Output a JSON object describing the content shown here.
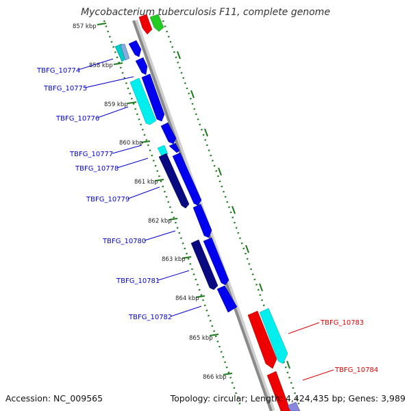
{
  "title": "Mycobacterium tuberculosis F11, complete genome",
  "footer": {
    "accession": "Accession: NC_009565",
    "topology": "Topology: circular; Length: 4,424,435 bp; Genes: 3,989"
  },
  "scale_marks": [
    {
      "label": "857 kbp"
    },
    {
      "label": "858 kbp"
    },
    {
      "label": "859 kbp"
    },
    {
      "label": "860 kbp"
    },
    {
      "label": "861 kbp"
    },
    {
      "label": "862 kbp"
    },
    {
      "label": "863 kbp"
    },
    {
      "label": "864 kbp"
    },
    {
      "label": "865 kbp"
    },
    {
      "label": "866 kbp"
    }
  ],
  "gene_labels": [
    {
      "text": "TBFG_10774",
      "color": "#0000cc"
    },
    {
      "text": "TBFG_10775",
      "color": "#0000cc"
    },
    {
      "text": "TBFG_10776",
      "color": "#0000cc"
    },
    {
      "text": "TBFG_10777",
      "color": "#0000cc"
    },
    {
      "text": "TBFG_10778",
      "color": "#0000cc"
    },
    {
      "text": "TBFG_10779",
      "color": "#0000cc"
    },
    {
      "text": "TBFG_10780",
      "color": "#0000cc"
    },
    {
      "text": "TBFG_10781",
      "color": "#0000cc"
    },
    {
      "text": "TBFG_10782",
      "color": "#0000cc"
    },
    {
      "text": "TBFG_10783",
      "color": "#dd0000"
    },
    {
      "text": "TBFG_10784",
      "color": "#dd0000"
    }
  ],
  "colors": {
    "blue": "#0000ee",
    "navy": "#0a0a80",
    "cyan": "#00eeee",
    "red": "#ee0000",
    "green": "#22cc22",
    "backbone": "#8a8a8a",
    "ticks": "#1a7a1a"
  }
}
